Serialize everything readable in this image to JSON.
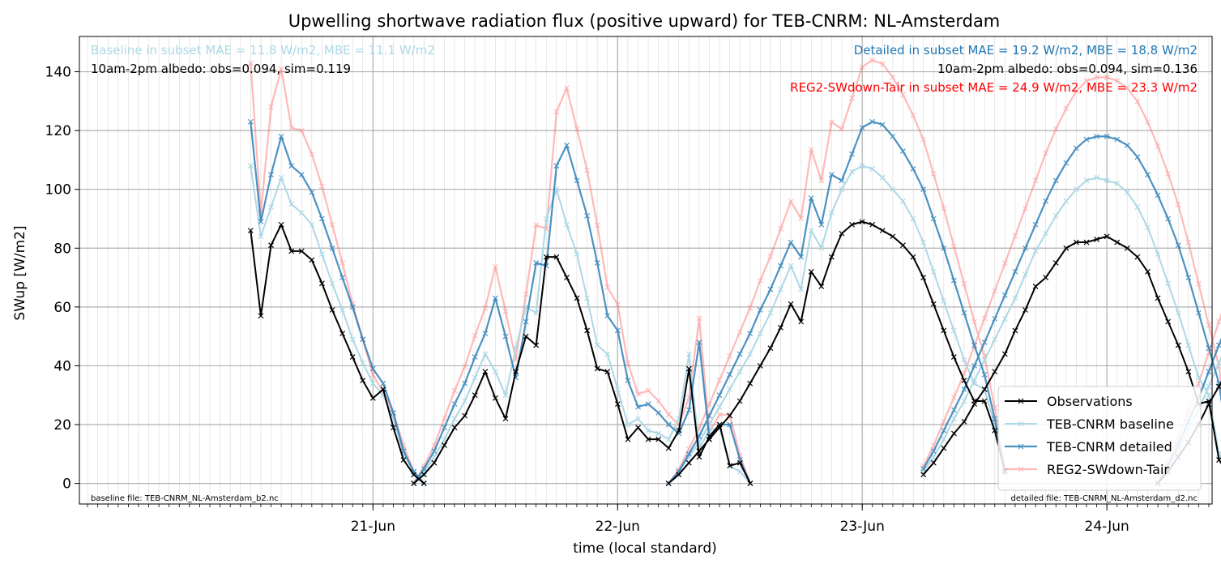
{
  "chart_data": {
    "type": "line",
    "title": "Upwelling shortwave radiation flux (positive upward) for TEB-CNRM: NL-Amsterdam",
    "xlabel": "time (local standard)",
    "ylabel": "SWup [W/m2]",
    "xlim": [
      -0.2,
      4.43
    ],
    "ylim": [
      -7,
      152
    ],
    "x_units": "days after 20-Jun 00:00",
    "x_ticks": [
      {
        "label": "21-Jun",
        "pos": 1
      },
      {
        "label": "22-Jun",
        "pos": 2
      },
      {
        "label": "23-Jun",
        "pos": 3
      },
      {
        "label": "24-Jun",
        "pos": 4
      }
    ],
    "y_ticks": [
      0,
      20,
      40,
      60,
      80,
      100,
      120,
      140
    ],
    "grid": true,
    "legend_position": "lower right",
    "annotations": {
      "baseline_stats": "Baseline in subset MAE = 11.8 W/m2, MBE = 11.1 W/m2",
      "baseline_albedo": "10am-2pm albedo: obs=0.094, sim=0.119",
      "detailed_stats": "Detailed in subset MAE = 19.2 W/m2, MBE = 18.8 W/m2",
      "detailed_albedo": "10am-2pm albedo: obs=0.094, sim=0.136",
      "reg2_stats": "REG2-SWdown-Tair in subset MAE = 24.9 W/m2, MBE = 23.3 W/m2",
      "baseline_file": "baseline file: TEB-CNRM_NL-Amsterdam_b2.nc",
      "detailed_file": "detailed file: TEB-CNRM_NL-Amsterdam_d2.nc"
    },
    "colors": {
      "baseline_text": "#add8e6",
      "detailed_text": "#1f77b4",
      "reg2_text": "#ff0000"
    },
    "series": [
      {
        "name": "Observations",
        "color": "#000000",
        "opacity": 1,
        "width": 2,
        "segments": [
          {
            "start": 0.5,
            "values": [
              86,
              57,
              81,
              88,
              79,
              79,
              76,
              68,
              59,
              51,
              43,
              35,
              29,
              32,
              19,
              8,
              3,
              0
            ]
          },
          {
            "start": 1.167,
            "values": [
              0,
              3,
              7,
              13,
              19,
              23,
              30,
              38,
              29,
              22,
              38,
              50,
              47,
              77,
              77,
              70,
              63,
              52,
              39,
              38,
              27,
              15,
              19,
              15,
              15,
              12,
              18,
              39,
              9,
              16,
              20,
              6,
              7,
              0
            ]
          },
          {
            "start": 2.208,
            "values": [
              0,
              3,
              7,
              11,
              15,
              19,
              23,
              28,
              34,
              40,
              46,
              53,
              61,
              55,
              72,
              67,
              77,
              85,
              88,
              89,
              88,
              86,
              84,
              81,
              77,
              70,
              61,
              52,
              43,
              35,
              28,
              28,
              18,
              4
            ]
          },
          {
            "start": 3.25,
            "values": [
              3,
              7,
              12,
              17,
              21,
              27,
              32,
              38,
              44,
              52,
              59,
              67,
              70,
              75,
              80,
              82,
              82,
              83,
              84,
              82,
              80,
              77,
              72,
              63,
              55,
              47,
              38,
              27,
              28,
              8,
              3
            ]
          },
          {
            "start": 4.208,
            "values": [
              0,
              4,
              9,
              14,
              20,
              27,
              33,
              39,
              45,
              52,
              61,
              70,
              73,
              71,
              70,
              77,
              69
            ]
          }
        ]
      },
      {
        "name": "TEB-CNRM baseline",
        "color": "#add8e6",
        "opacity": 1,
        "width": 2,
        "segments": [
          {
            "start": 0.5,
            "values": [
              108,
              84,
              94,
              104,
              95,
              92,
              88,
              78,
              68,
              59,
              49,
              41,
              34,
              30,
              22,
              10,
              4,
              0
            ]
          },
          {
            "start": 1.167,
            "values": [
              0,
              4,
              9,
              15,
              22,
              28,
              36,
              44,
              38,
              30,
              46,
              60,
              58,
              90,
              100,
              88,
              78,
              63,
              47,
              44,
              32,
              20,
              22,
              18,
              17,
              15,
              22,
              44,
              12,
              18,
              19,
              6,
              4,
              0
            ]
          },
          {
            "start": 2.208,
            "values": [
              0,
              4,
              9,
              14,
              20,
              26,
              32,
              38,
              44,
              51,
              58,
              66,
              74,
              66,
              86,
              80,
              92,
              100,
              106,
              108,
              107,
              104,
              100,
              96,
              90,
              82,
              72,
              62,
              52,
              42,
              34,
              32,
              20,
              3
            ]
          },
          {
            "start": 3.25,
            "values": [
              4,
              9,
              15,
              22,
              28,
              35,
              42,
              49,
              56,
              63,
              71,
              79,
              85,
              91,
              96,
              100,
              103,
              104,
              103,
              102,
              99,
              94,
              87,
              78,
              68,
              58,
              47,
              36,
              30,
              10,
              2
            ]
          },
          {
            "start": 4.208,
            "values": [
              0,
              5,
              11,
              18,
              25,
              33,
              41,
              49,
              57,
              66,
              76,
              86,
              93,
              96,
              93,
              84,
              94,
              86
            ]
          }
        ]
      },
      {
        "name": "TEB-CNRM detailed",
        "color": "#1f77b4",
        "opacity": 0.8,
        "width": 2.2,
        "segments": [
          {
            "start": 0.5,
            "values": [
              123,
              89,
              105,
              118,
              108,
              105,
              99,
              90,
              80,
              70,
              60,
              49,
              39,
              34,
              24,
              11,
              4,
              0
            ]
          },
          {
            "start": 1.167,
            "values": [
              0,
              5,
              11,
              19,
              27,
              34,
              43,
              51,
              63,
              50,
              36,
              55,
              75,
              74,
              108,
              115,
              103,
              91,
              75,
              57,
              52,
              35,
              26,
              27,
              24,
              20,
              17,
              25,
              48,
              15,
              20,
              20,
              8,
              0
            ]
          },
          {
            "start": 2.208,
            "values": [
              0,
              4,
              10,
              16,
              23,
              30,
              37,
              44,
              51,
              59,
              66,
              74,
              82,
              77,
              97,
              88,
              105,
              103,
              112,
              121,
              123,
              122,
              118,
              113,
              107,
              100,
              90,
              80,
              69,
              58,
              47,
              37,
              22,
              4
            ]
          },
          {
            "start": 3.25,
            "values": [
              5,
              11,
              18,
              25,
              32,
              40,
              48,
              56,
              64,
              72,
              80,
              88,
              96,
              103,
              109,
              114,
              117,
              118,
              118,
              117,
              115,
              111,
              105,
              98,
              90,
              81,
              70,
              58,
              46,
              34,
              10,
              2
            ]
          },
          {
            "start": 4.208,
            "values": [
              0,
              6,
              13,
              21,
              29,
              38,
              47,
              56,
              65,
              75,
              86,
              97,
              105,
              109,
              111,
              106,
              101,
              108,
              98
            ]
          }
        ]
      },
      {
        "name": "REG2-SWdown-Tair",
        "color": "#ff6666",
        "opacity": 0.45,
        "width": 2.2,
        "segments": [
          {
            "start": 0.5,
            "values": [
              143,
              92,
              128,
              141,
              121,
              120,
              112,
              101,
              88,
              75,
              61,
              49,
              37,
              31,
              24,
              13,
              4,
              0
            ]
          },
          {
            "start": 0.583,
            "values": []
          }
        ]
      }
    ]
  }
}
